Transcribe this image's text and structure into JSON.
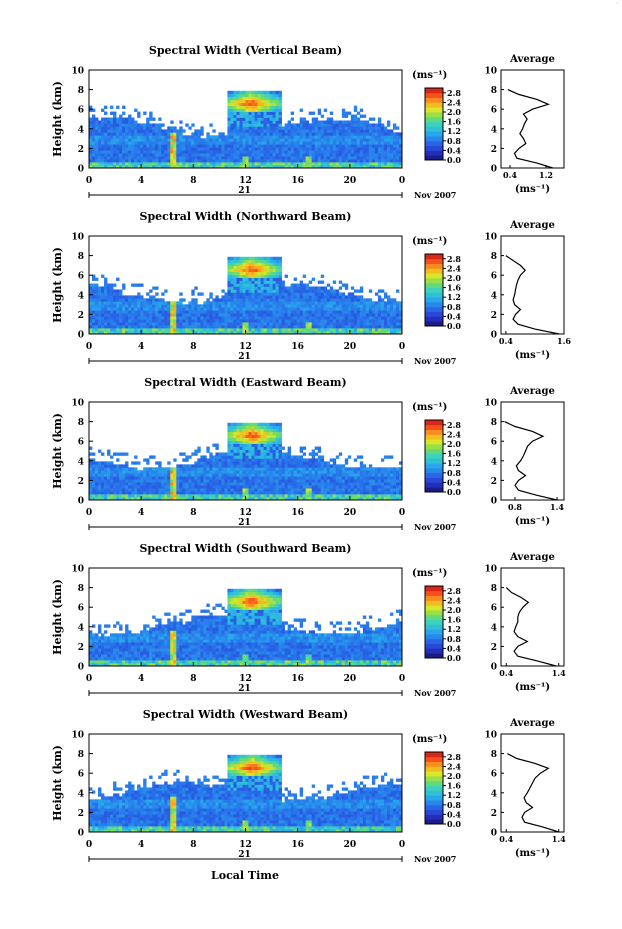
{
  "corner_mark": "·",
  "x_axis_title": "Local Time",
  "chart_data": [
    {
      "type": "heatmap",
      "title": "Spectral Width (Vertical Beam)",
      "ylabel": "Height (km)",
      "yticks": [
        "0",
        "2",
        "4",
        "6",
        "8",
        "10"
      ],
      "ylim": [
        0,
        10
      ],
      "xticks": [
        "0",
        "4",
        "8",
        "12",
        "16",
        "20",
        "0"
      ],
      "xlim": [
        0,
        24
      ],
      "day_label": "21",
      "date_label": "Nov 2007",
      "colorbar": {
        "unit": "(ms⁻¹)",
        "ticks": [
          "0.0",
          "0.4",
          "0.8",
          "1.2",
          "1.6",
          "2.0",
          "2.4",
          "2.8"
        ],
        "range": [
          0,
          3.0
        ]
      },
      "profile": {
        "title": "Average",
        "xlabel": "(ms⁻¹)",
        "xticks": [
          "0.4",
          "1.2"
        ],
        "xlim": [
          0.2,
          1.6
        ],
        "height": [
          0,
          0.5,
          1,
          1.5,
          2,
          2.5,
          3,
          3.5,
          4,
          4.5,
          5,
          5.5,
          6,
          6.5,
          7,
          7.5,
          8
        ],
        "value": [
          1.35,
          1.0,
          0.55,
          0.5,
          0.6,
          0.75,
          0.7,
          0.62,
          0.68,
          0.72,
          0.78,
          0.7,
          0.9,
          1.25,
          1.0,
          0.6,
          0.35
        ]
      }
    },
    {
      "type": "heatmap",
      "title": "Spectral Width (Northward Beam)",
      "ylabel": "Height (km)",
      "yticks": [
        "0",
        "2",
        "4",
        "6",
        "8",
        "10"
      ],
      "ylim": [
        0,
        10
      ],
      "xticks": [
        "0",
        "4",
        "8",
        "12",
        "16",
        "20",
        "0"
      ],
      "xlim": [
        0,
        24
      ],
      "day_label": "21",
      "date_label": "Nov 2007",
      "colorbar": {
        "unit": "(ms⁻¹)",
        "ticks": [
          "0.0",
          "0.4",
          "0.8",
          "1.2",
          "1.6",
          "2.0",
          "2.4",
          "2.8"
        ],
        "range": [
          0,
          3.0
        ]
      },
      "profile": {
        "title": "Average",
        "xlabel": "(ms⁻¹)",
        "xticks": [
          "0.4",
          "1.6"
        ],
        "xlim": [
          0.3,
          1.6
        ],
        "height": [
          0,
          0.5,
          1,
          1.5,
          2,
          2.5,
          3,
          3.5,
          4,
          4.5,
          5,
          5.5,
          6,
          6.5,
          7,
          7.5,
          8
        ],
        "value": [
          1.5,
          1.0,
          0.65,
          0.55,
          0.6,
          0.7,
          0.58,
          0.55,
          0.58,
          0.6,
          0.62,
          0.65,
          0.7,
          0.8,
          0.7,
          0.55,
          0.4
        ]
      }
    },
    {
      "type": "heatmap",
      "title": "Spectral Width (Eastward Beam)",
      "ylabel": "Height (km)",
      "yticks": [
        "0",
        "2",
        "4",
        "6",
        "8",
        "10"
      ],
      "ylim": [
        0,
        10
      ],
      "xticks": [
        "0",
        "4",
        "8",
        "12",
        "16",
        "20",
        "0"
      ],
      "xlim": [
        0,
        24
      ],
      "day_label": "21",
      "date_label": "Nov 2007",
      "colorbar": {
        "unit": "(ms⁻¹)",
        "ticks": [
          "0.0",
          "0.4",
          "0.8",
          "1.2",
          "1.6",
          "2.0",
          "2.4",
          "2.8"
        ],
        "range": [
          0,
          3.0
        ]
      },
      "profile": {
        "title": "Average",
        "xlabel": "(ms⁻¹)",
        "xticks": [
          "0.8",
          "1.4"
        ],
        "xlim": [
          0.6,
          1.5
        ],
        "height": [
          0,
          0.5,
          1,
          1.5,
          2,
          2.5,
          3,
          3.5,
          4,
          4.5,
          5,
          5.5,
          6,
          6.5,
          7,
          7.5,
          8
        ],
        "value": [
          1.4,
          1.1,
          0.85,
          0.8,
          0.85,
          0.95,
          0.85,
          0.82,
          0.88,
          0.92,
          0.95,
          0.98,
          1.05,
          1.2,
          1.05,
          0.8,
          0.65
        ]
      }
    },
    {
      "type": "heatmap",
      "title": "Spectral Width (Southward Beam)",
      "ylabel": "Height (km)",
      "yticks": [
        "0",
        "2",
        "4",
        "6",
        "8",
        "10"
      ],
      "ylim": [
        0,
        10
      ],
      "xticks": [
        "0",
        "4",
        "8",
        "12",
        "16",
        "20",
        "0"
      ],
      "xlim": [
        0,
        24
      ],
      "day_label": "21",
      "date_label": "Nov 2007",
      "colorbar": {
        "unit": "(ms⁻¹)",
        "ticks": [
          "0.0",
          "0.4",
          "0.8",
          "1.2",
          "1.6",
          "2.0",
          "2.4",
          "2.8"
        ],
        "range": [
          0,
          3.0
        ]
      },
      "profile": {
        "title": "Average",
        "xlabel": "(ms⁻¹)",
        "xticks": [
          "0.4",
          "1.4"
        ],
        "xlim": [
          0.3,
          1.5
        ],
        "height": [
          0,
          0.5,
          1,
          1.5,
          2,
          2.5,
          3,
          3.5,
          4,
          4.5,
          5,
          5.5,
          6,
          6.5,
          7,
          7.5,
          8
        ],
        "value": [
          1.35,
          1.0,
          0.62,
          0.55,
          0.62,
          0.8,
          0.62,
          0.55,
          0.58,
          0.62,
          0.62,
          0.65,
          0.72,
          0.82,
          0.68,
          0.5,
          0.4
        ]
      }
    },
    {
      "type": "heatmap",
      "title": "Spectral Width (Westward Beam)",
      "ylabel": "Height (km)",
      "yticks": [
        "0",
        "2",
        "4",
        "6",
        "8",
        "10"
      ],
      "ylim": [
        0,
        10
      ],
      "xticks": [
        "0",
        "4",
        "8",
        "12",
        "16",
        "20",
        "0"
      ],
      "xlim": [
        0,
        24
      ],
      "day_label": "21",
      "date_label": "Nov 2007",
      "colorbar": {
        "unit": "(ms⁻¹)",
        "ticks": [
          "0.0",
          "0.4",
          "0.8",
          "1.2",
          "1.6",
          "2.0",
          "2.4",
          "2.8"
        ],
        "range": [
          0,
          3.0
        ]
      },
      "profile": {
        "title": "Average",
        "xlabel": "(ms⁻¹)",
        "xticks": [
          "0.4",
          "1.4"
        ],
        "xlim": [
          0.3,
          1.5
        ],
        "height": [
          0,
          0.5,
          1,
          1.5,
          2,
          2.5,
          3,
          3.5,
          4,
          4.5,
          5,
          5.5,
          6,
          6.5,
          7,
          7.5,
          8
        ],
        "value": [
          1.4,
          1.1,
          0.75,
          0.7,
          0.75,
          0.9,
          0.78,
          0.74,
          0.8,
          0.85,
          0.9,
          0.95,
          1.05,
          1.2,
          0.95,
          0.6,
          0.42
        ]
      }
    }
  ]
}
